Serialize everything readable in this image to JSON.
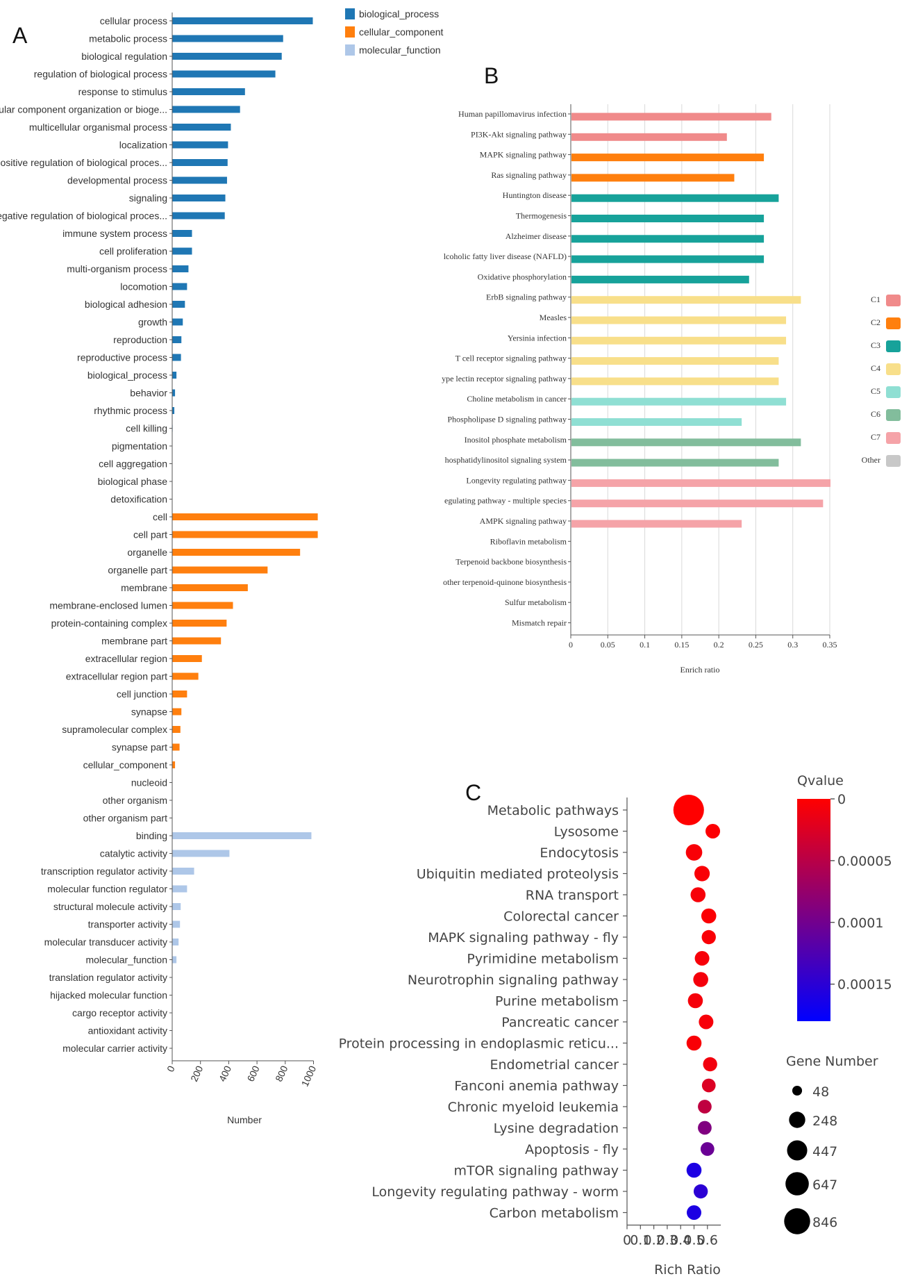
{
  "panels": {
    "a": "A",
    "b": "B",
    "c": "C"
  },
  "chart_data": [
    {
      "type": "bar",
      "orientation": "horizontal",
      "xlabel": "Number",
      "xlim": [
        0,
        1000
      ],
      "xticks": [
        "0",
        "200",
        "400",
        "600",
        "800",
        "1000"
      ],
      "legend": [
        {
          "name": "biological_process",
          "color": "#1f77b4"
        },
        {
          "name": "cellular_component",
          "color": "#ff7f0e"
        },
        {
          "name": "molecular_function",
          "color": "#aec7e8"
        }
      ],
      "groups": [
        {
          "name": "biological_process",
          "color": "#1f77b4",
          "categories": [
            "cellular process",
            "metabolic process",
            "biological regulation",
            "regulation of biological process",
            "response to stimulus",
            "cellular component organization or bioge...",
            "multicellular organismal process",
            "localization",
            "positive regulation of biological proces...",
            "developmental process",
            "signaling",
            "negative regulation of biological proces...",
            "immune system process",
            "cell proliferation",
            "multi-organism process",
            "locomotion",
            "biological adhesion",
            "growth",
            "reproduction",
            "reproductive process",
            "biological_process",
            "behavior",
            "rhythmic process",
            "cell killing",
            "pigmentation",
            "cell aggregation",
            "biological phase",
            "detoxification"
          ],
          "values": [
            995,
            785,
            775,
            730,
            515,
            480,
            415,
            395,
            392,
            388,
            376,
            372,
            140,
            140,
            115,
            105,
            90,
            75,
            65,
            62,
            30,
            20,
            15,
            3,
            0,
            0,
            0,
            0
          ]
        },
        {
          "name": "cellular_component",
          "color": "#ff7f0e",
          "categories": [
            "cell",
            "cell part",
            "organelle",
            "organelle part",
            "membrane",
            "membrane-enclosed lumen",
            "protein-containing complex",
            "membrane part",
            "extracellular region",
            "extracellular region part",
            "cell junction",
            "synapse",
            "supramolecular complex",
            "synapse part",
            "cellular_component",
            "nucleoid",
            "other organism",
            "other organism part"
          ],
          "values": [
            1030,
            1030,
            905,
            675,
            535,
            430,
            385,
            345,
            210,
            185,
            105,
            65,
            58,
            52,
            20,
            0,
            0,
            0
          ]
        },
        {
          "name": "molecular_function",
          "color": "#aec7e8",
          "categories": [
            "binding",
            "catalytic activity",
            "transcription regulator activity",
            "molecular function regulator",
            "structural molecule activity",
            "transporter activity",
            "molecular transducer activity",
            "molecular_function",
            "translation regulator activity",
            "hijacked molecular function",
            "cargo receptor activity",
            "antioxidant activity",
            "molecular carrier activity"
          ],
          "values": [
            985,
            405,
            155,
            105,
            60,
            55,
            45,
            30,
            0,
            0,
            0,
            0,
            0
          ]
        }
      ]
    },
    {
      "type": "bar",
      "orientation": "horizontal",
      "xlabel": "Enrich ratio",
      "xlim": [
        0,
        0.35
      ],
      "xticks": [
        "0",
        "0.05",
        "0.1",
        "0.15",
        "0.2",
        "0.25",
        "0.3",
        "0.35"
      ],
      "legend": [
        {
          "name": "C1",
          "color": "#f08a8a"
        },
        {
          "name": "C2",
          "color": "#ff7f0e"
        },
        {
          "name": "C3",
          "color": "#17a29a"
        },
        {
          "name": "C4",
          "color": "#f8df8a"
        },
        {
          "name": "C5",
          "color": "#8fdfd3"
        },
        {
          "name": "C6",
          "color": "#82bd9c"
        },
        {
          "name": "C7",
          "color": "#f5a3a8"
        },
        {
          "name": "Other",
          "color": "#c8c8c8"
        }
      ],
      "categories": [
        "Human papillomavirus infection",
        "PI3K-Akt signaling pathway",
        "MAPK signaling pathway",
        "Ras signaling pathway",
        "Huntington disease",
        "Thermogenesis",
        "Alzheimer disease",
        "lcoholic fatty liver disease (NAFLD)",
        "Oxidative phosphorylation",
        "ErbB signaling pathway",
        "Measles",
        "Yersinia infection",
        "T cell receptor signaling pathway",
        "ype lectin receptor signaling pathway",
        "Choline metabolism in cancer",
        "Phospholipase D signaling pathway",
        "Inositol phosphate metabolism",
        "hosphatidylinositol signaling system",
        "Longevity regulating pathway",
        "egulating pathway - multiple species",
        "AMPK signaling pathway",
        "Riboflavin metabolism",
        "Terpenoid backbone biosynthesis",
        "other terpenoid-quinone biosynthesis",
        "Sulfur metabolism",
        "Mismatch repair"
      ],
      "values": [
        0.27,
        0.21,
        0.26,
        0.22,
        0.28,
        0.26,
        0.26,
        0.26,
        0.24,
        0.31,
        0.29,
        0.29,
        0.28,
        0.28,
        0.29,
        0.23,
        0.31,
        0.28,
        0.35,
        0.34,
        0.23,
        0,
        0,
        0,
        0,
        0
      ],
      "clusters": [
        "C1",
        "C1",
        "C2",
        "C2",
        "C3",
        "C3",
        "C3",
        "C3",
        "C3",
        "C4",
        "C4",
        "C4",
        "C4",
        "C4",
        "C5",
        "C5",
        "C6",
        "C6",
        "C7",
        "C7",
        "C7",
        "Other",
        "Other",
        "Other",
        "Other",
        "Other"
      ]
    },
    {
      "type": "scatter",
      "xlabel": "Rich Ratio",
      "xticks": [
        "0",
        "0.1",
        "0.2",
        "0.3",
        "0.4",
        "0.5",
        "0.6"
      ],
      "xlim": [
        0,
        0.7
      ],
      "color_title": "Qvalue",
      "color_ticks": [
        "0",
        "0.00005",
        "0.0001",
        "0.00015"
      ],
      "color_range": [
        0,
        0.00018
      ],
      "size_title": "Gene Number",
      "size_legend": [
        48,
        248,
        447,
        647,
        846
      ],
      "categories": [
        "Metabolic pathways",
        "Lysosome",
        "Endocytosis",
        "Ubiquitin mediated proteolysis",
        "RNA transport",
        "Colorectal cancer",
        "MAPK signaling pathway - fly",
        "Pyrimidine metabolism",
        "Neurotrophin signaling pathway",
        "Purine metabolism",
        "Pancreatic cancer",
        "Protein processing in endoplasmic reticu...",
        "Endometrial cancer",
        "Fanconi anemia pathway",
        "Chronic myeloid leukemia",
        "Lysine degradation",
        "Apoptosis - fly",
        "mTOR signaling pathway",
        "Longevity regulating pathway - worm",
        "Carbon metabolism"
      ],
      "x": [
        0.46,
        0.64,
        0.5,
        0.56,
        0.53,
        0.61,
        0.61,
        0.56,
        0.55,
        0.51,
        0.59,
        0.5,
        0.62,
        0.61,
        0.58,
        0.58,
        0.6,
        0.5,
        0.55,
        0.5
      ],
      "qvalue": [
        0.0,
        2e-06,
        5e-06,
        4e-06,
        6e-06,
        3e-06,
        4e-06,
        6e-06,
        8e-06,
        7e-06,
        6e-06,
        4e-06,
        9e-06,
        2.5e-05,
        4.5e-05,
        9e-05,
        0.000105,
        0.00016,
        0.00015,
        0.00016
      ],
      "gene_number": [
        846,
        110,
        160,
        130,
        120,
        120,
        100,
        110,
        120,
        120,
        110,
        120,
        100,
        90,
        90,
        90,
        90,
        120,
        100,
        110
      ]
    }
  ]
}
